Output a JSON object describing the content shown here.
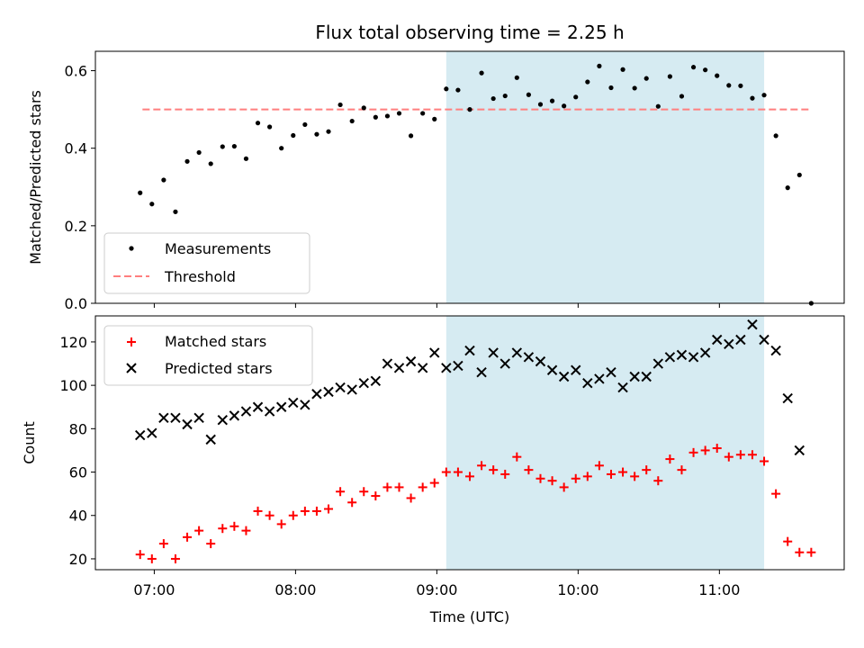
{
  "chart_data": [
    {
      "type": "scatter",
      "title": "Flux total observing time = 2.25 h",
      "ylabel": "Matched/Predicted stars",
      "ylim": [
        0,
        0.65
      ],
      "yticks": [
        0.0,
        0.2,
        0.4,
        0.6
      ],
      "ytick_labels": [
        "0.0",
        "0.2",
        "0.4",
        "0.6"
      ],
      "xticks": [
        "07:00",
        "08:00",
        "09:00",
        "10:00",
        "11:00"
      ],
      "shaded_interval": {
        "x0": "09:04",
        "x1": "11:19",
        "color": "#add8e6"
      },
      "legend": {
        "placement": "lower-left",
        "entries": [
          {
            "label": "Measurements",
            "marker": "dot",
            "color": "#000000"
          },
          {
            "label": "Threshold",
            "marker": "dashed-line",
            "color": "#ff7f7f"
          }
        ]
      },
      "threshold": {
        "y": 0.5,
        "x0": "06:55",
        "x1": "11:39",
        "color": "#ff7f7f"
      },
      "series": [
        {
          "marker": "dot",
          "color": "#000000",
          "x": [
            "06:54",
            "06:59",
            "07:04",
            "07:09",
            "07:14",
            "07:19",
            "07:24",
            "07:29",
            "07:34",
            "07:39",
            "07:44",
            "07:49",
            "07:54",
            "07:59",
            "08:04",
            "08:09",
            "08:14",
            "08:19",
            "08:24",
            "08:29",
            "08:34",
            "08:39",
            "08:44",
            "08:49",
            "08:54",
            "08:59",
            "09:04",
            "09:09",
            "09:14",
            "09:19",
            "09:24",
            "09:29",
            "09:34",
            "09:39",
            "09:44",
            "09:49",
            "09:54",
            "09:59",
            "10:04",
            "10:09",
            "10:14",
            "10:19",
            "10:24",
            "10:29",
            "10:34",
            "10:39",
            "10:44",
            "10:49",
            "10:54",
            "10:59",
            "11:04",
            "11:09",
            "11:14",
            "11:19",
            "11:24",
            "11:29",
            "11:34",
            "11:39"
          ],
          "y": [
            0.285,
            0.256,
            0.318,
            0.236,
            0.366,
            0.389,
            0.36,
            0.404,
            0.405,
            0.373,
            0.465,
            0.455,
            0.4,
            0.433,
            0.461,
            0.436,
            0.443,
            0.512,
            0.47,
            0.504,
            0.48,
            0.483,
            0.49,
            0.432,
            0.49,
            0.475,
            0.553,
            0.55,
            0.5,
            0.594,
            0.528,
            0.535,
            0.582,
            0.538,
            0.513,
            0.522,
            0.509,
            0.532,
            0.571,
            0.612,
            0.556,
            0.603,
            0.555,
            0.58,
            0.508,
            0.585,
            0.534,
            0.609,
            0.602,
            0.587,
            0.562,
            0.561,
            0.529,
            0.537,
            0.432,
            0.298,
            0.331,
            0.0
          ]
        }
      ]
    },
    {
      "type": "scatter",
      "xlabel": "Time (UTC)",
      "ylabel": "Count",
      "ylim": [
        15,
        132
      ],
      "yticks": [
        20,
        40,
        60,
        80,
        100,
        120
      ],
      "ytick_labels": [
        "20",
        "40",
        "60",
        "80",
        "100",
        "120"
      ],
      "xticks": [
        "07:00",
        "08:00",
        "09:00",
        "10:00",
        "11:00"
      ],
      "shaded_interval": {
        "x0": "09:04",
        "x1": "11:19",
        "color": "#add8e6"
      },
      "legend": {
        "placement": "upper-left",
        "entries": [
          {
            "label": "Matched stars",
            "marker": "plus",
            "color": "#ff0000"
          },
          {
            "label": "Predicted stars",
            "marker": "x",
            "color": "#000000"
          }
        ]
      },
      "series": [
        {
          "name": "Matched stars",
          "marker": "plus",
          "color": "#ff0000",
          "x": [
            "06:54",
            "06:59",
            "07:04",
            "07:09",
            "07:14",
            "07:19",
            "07:24",
            "07:29",
            "07:34",
            "07:39",
            "07:44",
            "07:49",
            "07:54",
            "07:59",
            "08:04",
            "08:09",
            "08:14",
            "08:19",
            "08:24",
            "08:29",
            "08:34",
            "08:39",
            "08:44",
            "08:49",
            "08:54",
            "08:59",
            "09:04",
            "09:09",
            "09:14",
            "09:19",
            "09:24",
            "09:29",
            "09:34",
            "09:39",
            "09:44",
            "09:49",
            "09:54",
            "09:59",
            "10:04",
            "10:09",
            "10:14",
            "10:19",
            "10:24",
            "10:29",
            "10:34",
            "10:39",
            "10:44",
            "10:49",
            "10:54",
            "10:59",
            "11:04",
            "11:09",
            "11:14",
            "11:19",
            "11:24",
            "11:29",
            "11:34",
            "11:39"
          ],
          "y": [
            22,
            20,
            27,
            20,
            30,
            33,
            27,
            34,
            35,
            33,
            42,
            40,
            36,
            40,
            42,
            42,
            43,
            51,
            46,
            51,
            49,
            53,
            53,
            48,
            53,
            55,
            60,
            60,
            58,
            63,
            61,
            59,
            67,
            61,
            57,
            56,
            53,
            57,
            58,
            63,
            59,
            60,
            58,
            61,
            56,
            66,
            61,
            69,
            70,
            71,
            67,
            68,
            68,
            65,
            50,
            28,
            23,
            23
          ]
        },
        {
          "name": "Predicted stars",
          "marker": "x",
          "color": "#000000",
          "x": [
            "06:54",
            "06:59",
            "07:04",
            "07:09",
            "07:14",
            "07:19",
            "07:24",
            "07:29",
            "07:34",
            "07:39",
            "07:44",
            "07:49",
            "07:54",
            "07:59",
            "08:04",
            "08:09",
            "08:14",
            "08:19",
            "08:24",
            "08:29",
            "08:34",
            "08:39",
            "08:44",
            "08:49",
            "08:54",
            "08:59",
            "09:04",
            "09:09",
            "09:14",
            "09:19",
            "09:24",
            "09:29",
            "09:34",
            "09:39",
            "09:44",
            "09:49",
            "09:54",
            "09:59",
            "10:04",
            "10:09",
            "10:14",
            "10:19",
            "10:24",
            "10:29",
            "10:34",
            "10:39",
            "10:44",
            "10:49",
            "10:54",
            "10:59",
            "11:04",
            "11:09",
            "11:14",
            "11:19",
            "11:24",
            "11:29",
            "11:34"
          ],
          "y": [
            77,
            78,
            85,
            85,
            82,
            85,
            75,
            84,
            86,
            88,
            90,
            88,
            90,
            92,
            91,
            96,
            97,
            99,
            98,
            101,
            102,
            110,
            108,
            111,
            108,
            115,
            108,
            109,
            116,
            106,
            115,
            110,
            115,
            113,
            111,
            107,
            104,
            107,
            101,
            103,
            106,
            99,
            104,
            104,
            110,
            113,
            114,
            113,
            115,
            121,
            119,
            121,
            128,
            121,
            116,
            94,
            70
          ]
        }
      ]
    }
  ]
}
